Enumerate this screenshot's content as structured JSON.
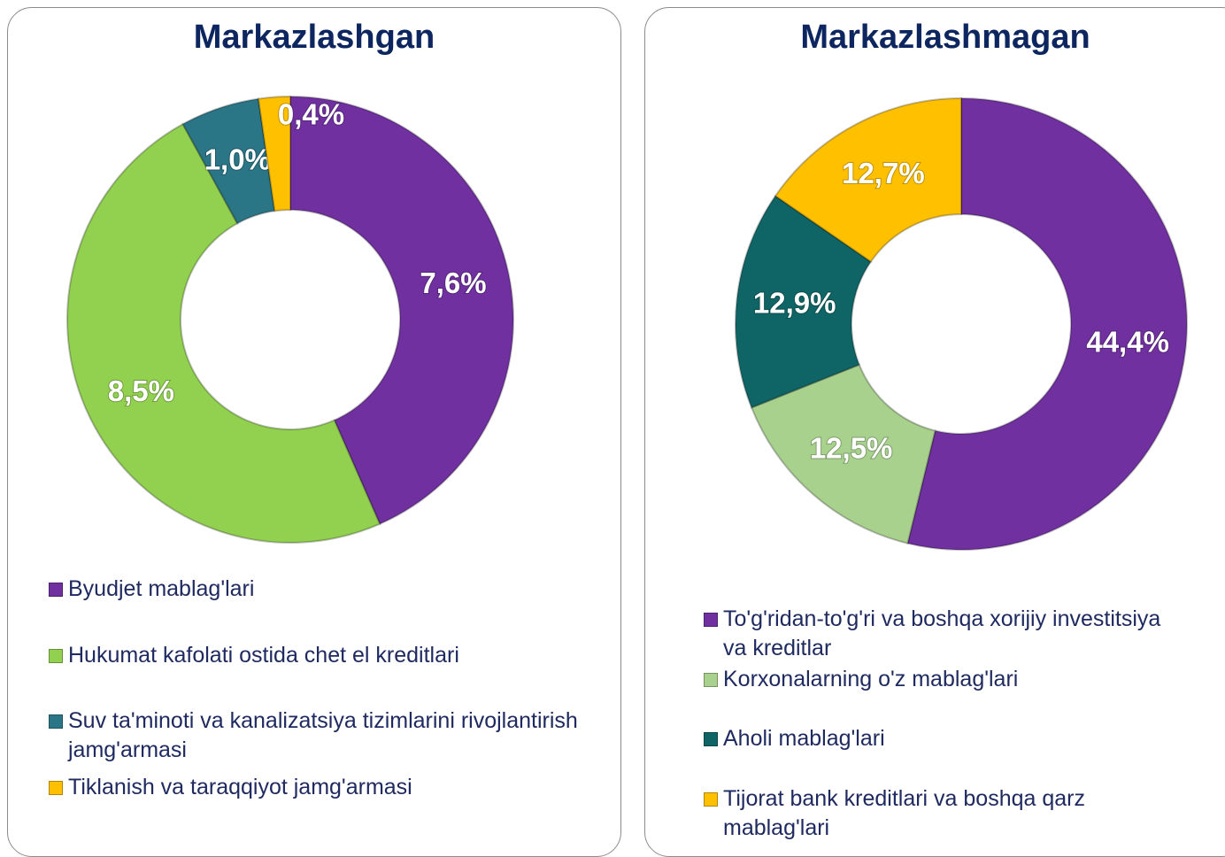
{
  "chart_data": [
    {
      "type": "donut",
      "title": "Markazlashgan",
      "categories": [
        "Byudjet mablag'lari",
        "Hukumat kafolati ostida chet el kreditlari",
        "Suv ta'minoti va kanalizatsiya tizimlarini rivojlantirish jamg'armasi",
        "Tiklanish va taraqqiyot jamg'armasi"
      ],
      "values": [
        7.6,
        8.5,
        1.0,
        0.4
      ],
      "value_labels": [
        "7,6%",
        "8,5%",
        "1,0%",
        "0,4%"
      ],
      "colors": [
        "#7030a0",
        "#92d050",
        "#2a7687",
        "#ffc000"
      ]
    },
    {
      "type": "donut",
      "title": "Markazlashmagan",
      "categories": [
        "To'g'ridan-to'g'ri va boshqa xorijiy investitsiya va kreditlar",
        "Korxonalarning o'z mablag'lari",
        "Aholi mablag'lari",
        "Tijorat bank kreditlari va boshqa qarz mablag'lari"
      ],
      "values": [
        44.4,
        12.5,
        12.9,
        12.7
      ],
      "value_labels": [
        "44,4%",
        "12,5%",
        "12,9%",
        "12,7%"
      ],
      "colors": [
        "#7030a0",
        "#a9d18e",
        "#0f6566",
        "#ffc000"
      ]
    }
  ]
}
